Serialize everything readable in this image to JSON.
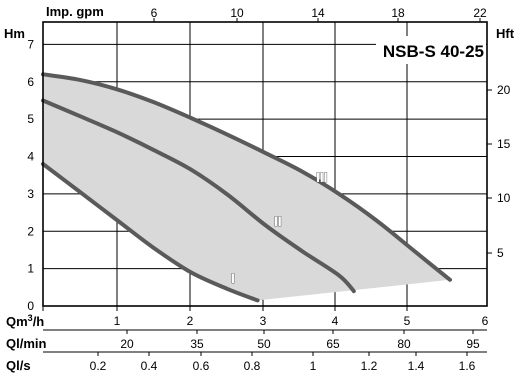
{
  "chart_data": {
    "type": "line",
    "title": "NSB-S 40-25",
    "y_axes": {
      "left": {
        "label": "Hm",
        "range": [
          0,
          7.6
        ],
        "ticks": [
          "0",
          "1",
          "2",
          "3",
          "4",
          "5",
          "6",
          "7"
        ]
      },
      "right": {
        "label": "Hft",
        "ticks": [
          "5",
          "10",
          "15",
          "20"
        ]
      }
    },
    "x_axes": {
      "top": {
        "label": "Imp. gpm",
        "ticks": [
          "6",
          "10",
          "14",
          "18",
          "22"
        ]
      },
      "m3h": {
        "label": "Qm3/h",
        "label_base": "Qm",
        "label_sup": "3",
        "label_rest": "/h",
        "range": [
          0,
          6
        ],
        "ticks": [
          "1",
          "2",
          "3",
          "4",
          "5",
          "6"
        ]
      },
      "lmin": {
        "label": "Ql/min",
        "ticks": [
          "20",
          "35",
          "50",
          "65",
          "80",
          "95"
        ]
      },
      "ls": {
        "label": "Ql/s",
        "ticks": [
          "0.2",
          "0.4",
          "0.6",
          "0.8",
          "1",
          "1.2",
          "1.4",
          "1.6"
        ]
      }
    },
    "series": [
      {
        "name": "I",
        "x": [
          0,
          0.5,
          1,
          1.5,
          2,
          2.5,
          2.9
        ],
        "y": [
          3.8,
          3.05,
          2.3,
          1.55,
          0.9,
          0.45,
          0.15
        ]
      },
      {
        "name": "II",
        "x": [
          0,
          0.5,
          1,
          1.5,
          2,
          2.5,
          3,
          3.5,
          4,
          4.2
        ],
        "y": [
          5.5,
          5.08,
          4.65,
          4.17,
          3.65,
          2.97,
          2.17,
          1.47,
          0.82,
          0.4
        ]
      },
      {
        "name": "III",
        "x": [
          0,
          0.5,
          1,
          1.5,
          2,
          2.5,
          3,
          3.5,
          4,
          4.5,
          5,
          5.5
        ],
        "y": [
          6.2,
          6.05,
          5.8,
          5.45,
          5.03,
          4.58,
          4.1,
          3.6,
          3.0,
          2.3,
          1.5,
          0.7
        ]
      }
    ],
    "grid": true
  }
}
